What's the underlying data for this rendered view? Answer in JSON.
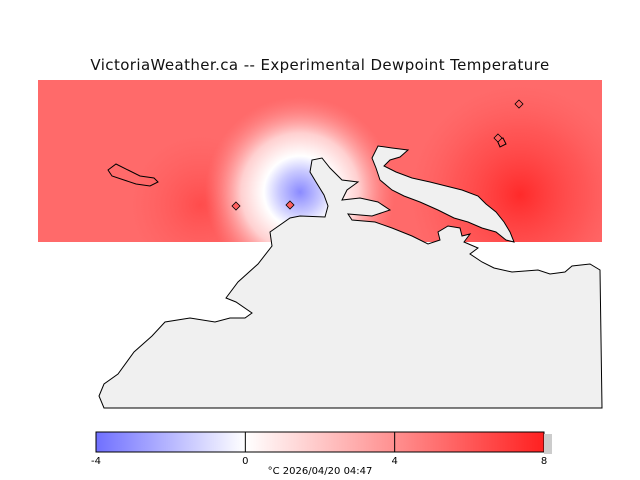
{
  "title": "VictoriaWeather.ca -- Experimental Dewpoint Temperature",
  "colorbar": {
    "min": -4,
    "max": 8,
    "ticks": [
      "-4",
      "0",
      "4",
      "8"
    ],
    "low_color": "#7070ff",
    "zero_color": "#ffffff",
    "high_color": "#ff2020"
  },
  "caption": {
    "unit": "°C",
    "timestamp": "2026/04/20 04:47"
  },
  "colors": {
    "land": "#f0f0f0",
    "field_base": "#ff6a6a",
    "coastline": "#000000"
  },
  "station_markers": [
    "station-diamond",
    "station-diamond",
    "station-diamond",
    "station-diamond",
    "station-diamond"
  ]
}
